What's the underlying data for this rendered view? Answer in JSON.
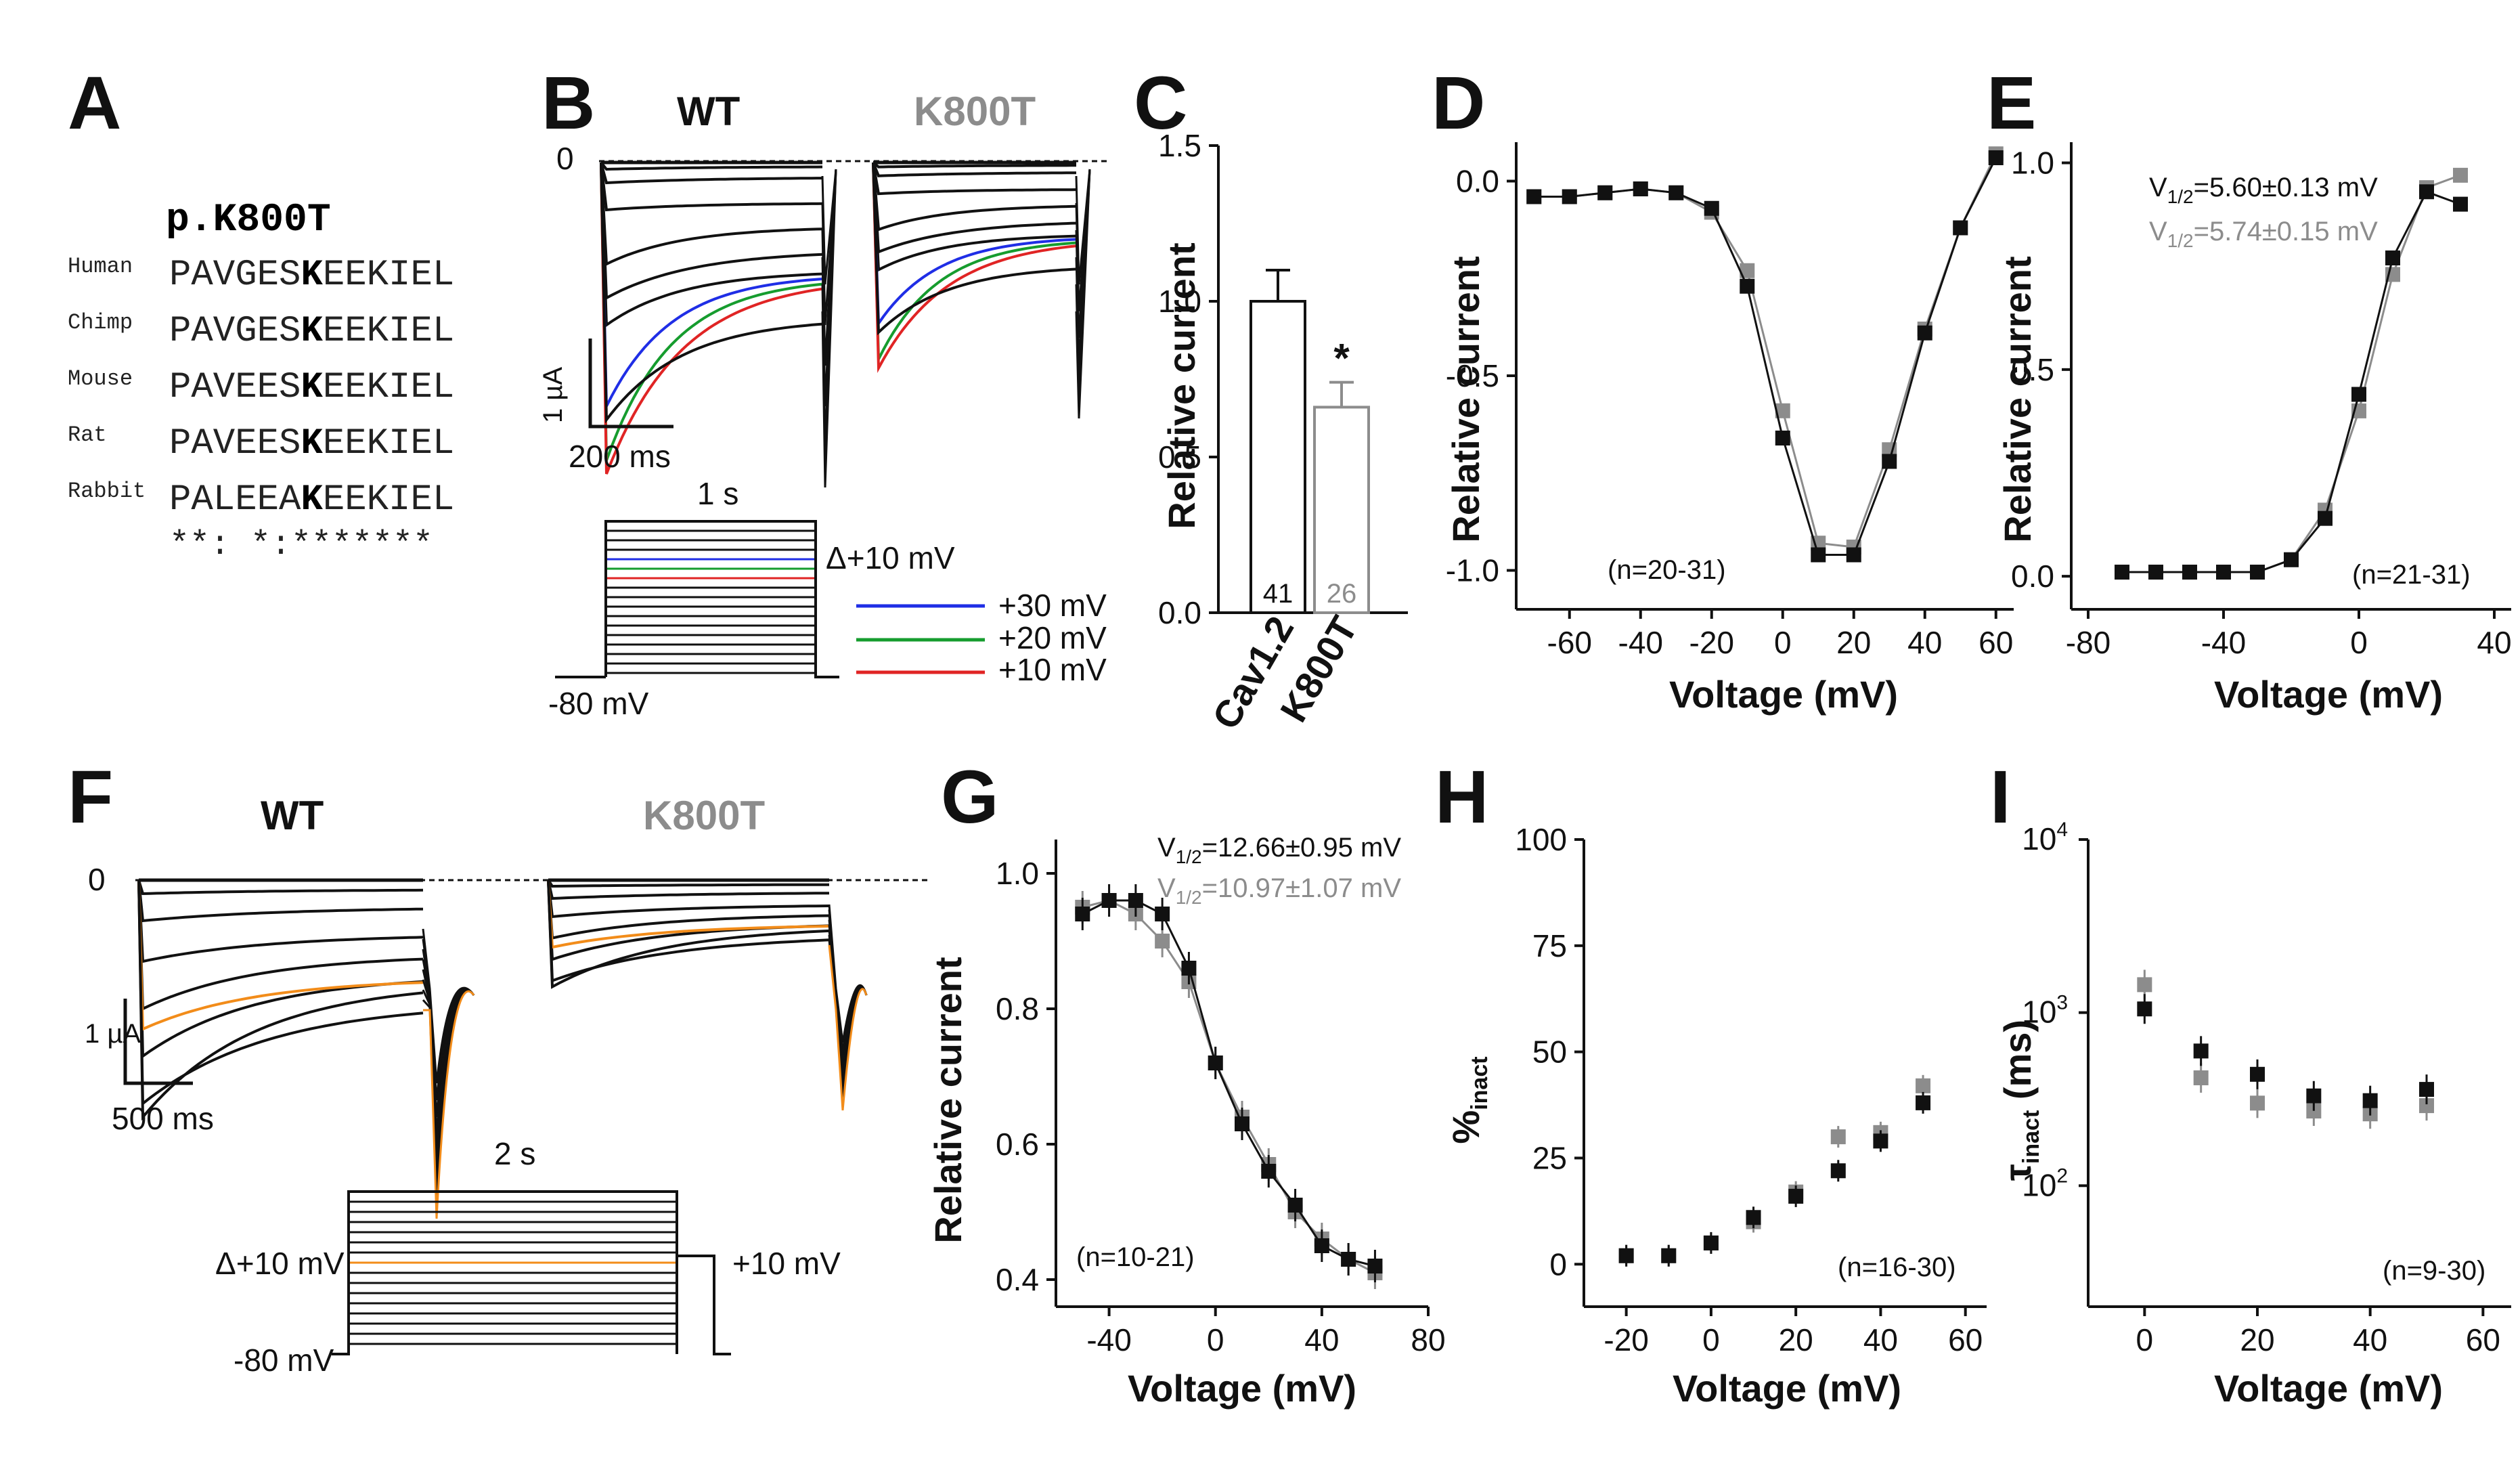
{
  "colors": {
    "wt": "#111111",
    "k800t": "#8c8c8c",
    "blue": "#1f2ee6",
    "green": "#169c2e",
    "red": "#e02424",
    "orange": "#f28c1a"
  },
  "panel_labels": [
    "A",
    "B",
    "C",
    "D",
    "E",
    "F",
    "G",
    "H",
    "I"
  ],
  "panelA": {
    "mutation": "p.K800T",
    "species": [
      "Human",
      "Chimp",
      "Mouse",
      "Rat",
      "Rabbit"
    ],
    "seq_pre": [
      "PAVGES",
      "PAVGES",
      "PAVEES",
      "PAVEES",
      "PALEEA"
    ],
    "seq_k": [
      "K",
      "K",
      "K",
      "K",
      "K"
    ],
    "seq_post": [
      "EEKIEL",
      "EEKIEL",
      "EEKIEL",
      "EEKIEL",
      "EEKIEL"
    ],
    "conservation": "**: *:*******"
  },
  "panelB": {
    "title_wt": "WT",
    "title_mut": "K800T",
    "zero": "0",
    "scale_y": "1 µA",
    "scale_x": "200 ms",
    "protocol_duration": "1 s",
    "protocol_step": "Δ+10 mV",
    "protocol_hold": "-80 mV",
    "legend": [
      "+30 mV",
      "+20 mV",
      "+10 mV"
    ]
  },
  "panelC": {
    "chart_data": {
      "type": "bar",
      "categories": [
        "Cav1.2",
        "K800T"
      ],
      "values": [
        1.0,
        0.66
      ],
      "errors": [
        0.1,
        0.08
      ],
      "n": [
        "41",
        "26"
      ],
      "ylabel": "Relative current",
      "ylim": [
        0,
        1.5
      ],
      "yticks": [
        "0.0",
        "0.5",
        "1.0",
        "1.5"
      ],
      "significance": "*"
    }
  },
  "panelD": {
    "chart_data": {
      "type": "line",
      "x": [
        -70,
        -60,
        -50,
        -40,
        -30,
        -20,
        -10,
        0,
        10,
        20,
        30,
        40,
        50,
        60
      ],
      "series": [
        {
          "name": "WT",
          "values": [
            -0.04,
            -0.04,
            -0.03,
            -0.02,
            -0.03,
            -0.07,
            -0.27,
            -0.66,
            -0.96,
            -0.96,
            -0.72,
            -0.39,
            -0.12,
            0.06
          ]
        },
        {
          "name": "K800T",
          "values": [
            -0.04,
            -0.04,
            -0.03,
            -0.02,
            -0.03,
            -0.08,
            -0.23,
            -0.59,
            -0.93,
            -0.94,
            -0.69,
            -0.38,
            -0.12,
            0.07
          ]
        }
      ],
      "xlabel": "Voltage (mV)",
      "ylabel": "Relative current",
      "xlim": [
        -75,
        65
      ],
      "ylim": [
        -1.1,
        0.1
      ],
      "xticks": [
        "-60",
        "-40",
        "-20",
        "0",
        "20",
        "40",
        "60"
      ],
      "yticks": [
        "0.0",
        "-0.5",
        "-1.0"
      ],
      "note": "(n=20-31)"
    }
  },
  "panelE": {
    "chart_data": {
      "type": "line",
      "x": [
        -70,
        -60,
        -50,
        -40,
        -30,
        -20,
        -10,
        0,
        10,
        20,
        30
      ],
      "series": [
        {
          "name": "WT",
          "values": [
            0.01,
            0.01,
            0.01,
            0.01,
            0.01,
            0.04,
            0.14,
            0.44,
            0.77,
            0.93,
            0.9
          ]
        },
        {
          "name": "K800T",
          "values": [
            0.01,
            0.01,
            0.01,
            0.01,
            0.01,
            0.04,
            0.16,
            0.4,
            0.73,
            0.94,
            0.97
          ]
        }
      ],
      "xlabel": "Voltage (mV)",
      "ylabel": "Relative current",
      "xlim": [
        -85,
        45
      ],
      "ylim": [
        -0.08,
        1.05
      ],
      "xticks": [
        "-80",
        "-40",
        "0",
        "40"
      ],
      "yticks": [
        "0.0",
        "0.5",
        "1.0"
      ],
      "v_half_wt": "=5.60±0.13 mV",
      "v_half_mut": "=5.74±0.15 mV",
      "note": "(n=21-31)"
    }
  },
  "panelF": {
    "title_wt": "WT",
    "title_mut": "K800T",
    "zero": "0",
    "scale_y": "1 µA",
    "scale_x": "500 ms",
    "protocol_duration": "2 s",
    "protocol_step": "Δ+10 mV",
    "protocol_test": "+10 mV",
    "protocol_hold": "-80 mV"
  },
  "panelG": {
    "chart_data": {
      "type": "line",
      "x": [
        -50,
        -40,
        -30,
        -20,
        -10,
        0,
        10,
        20,
        30,
        40,
        50,
        60
      ],
      "series": [
        {
          "name": "WT",
          "values": [
            0.94,
            0.96,
            0.96,
            0.94,
            0.86,
            0.72,
            0.63,
            0.56,
            0.51,
            0.45,
            0.43,
            0.42
          ]
        },
        {
          "name": "K800T",
          "values": [
            0.95,
            0.96,
            0.94,
            0.9,
            0.84,
            0.72,
            0.64,
            0.57,
            0.5,
            0.46,
            0.43,
            0.41
          ]
        }
      ],
      "xlabel": "Voltage (mV)",
      "ylabel": "Relative current",
      "xlim": [
        -60,
        80
      ],
      "ylim": [
        0.36,
        1.05
      ],
      "xticks": [
        "-40",
        "0",
        "40",
        "80"
      ],
      "yticks": [
        "0.4",
        "0.6",
        "0.8",
        "1.0"
      ],
      "v_half_wt": "=12.66±0.95 mV",
      "v_half_mut": "=10.97±1.07 mV",
      "note": "(n=10-21)"
    }
  },
  "panelH": {
    "chart_data": {
      "type": "scatter",
      "x": [
        -20,
        -10,
        0,
        10,
        20,
        30,
        40,
        50
      ],
      "series": [
        {
          "name": "WT",
          "values": [
            2,
            2,
            5,
            11,
            16,
            22,
            29,
            38
          ]
        },
        {
          "name": "K800T",
          "values": [
            2,
            2,
            5,
            10,
            17,
            30,
            31,
            42
          ]
        }
      ],
      "xlabel": "Voltage (mV)",
      "ylabel": "%inact",
      "xlim": [
        -30,
        65
      ],
      "ylim": [
        -10,
        100
      ],
      "xticks": [
        "-20",
        "0",
        "20",
        "40",
        "60"
      ],
      "yticks": [
        "0",
        "25",
        "50",
        "75",
        "100"
      ],
      "note": "(n=16-30)"
    }
  },
  "panelI": {
    "chart_data": {
      "type": "scatter",
      "x": [
        0,
        10,
        20,
        30,
        40,
        50
      ],
      "series": [
        {
          "name": "WT",
          "values": [
            1050,
            600,
            440,
            330,
            310,
            360
          ]
        },
        {
          "name": "K800T",
          "values": [
            1450,
            420,
            300,
            270,
            260,
            290
          ]
        }
      ],
      "xlabel": "Voltage (mV)",
      "ylabel": "τinact (ms)",
      "scale": "log",
      "xlim": [
        -10,
        65
      ],
      "ylim": [
        20,
        10000
      ],
      "xticks": [
        "0",
        "20",
        "40",
        "60"
      ],
      "note": "(n=9-30)"
    }
  }
}
